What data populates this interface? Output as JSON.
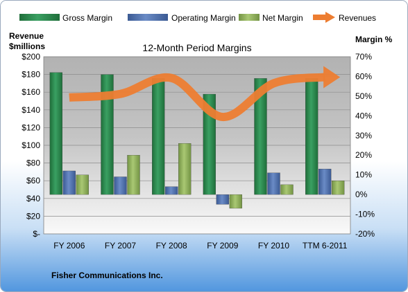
{
  "chart_data": {
    "type": "bar",
    "title": "12-Month Period Margins",
    "categories": [
      "FY 2006",
      "FY 2007",
      "FY 2008",
      "FY 2009",
      "FY 2010",
      "TTM 6-2011"
    ],
    "left_axis": {
      "label_line1": "Revenue",
      "label_line2": "$millions",
      "min": 0,
      "max": 200,
      "step": 20,
      "ticks": [
        "$-",
        "$20",
        "$40",
        "$60",
        "$80",
        "$100",
        "$120",
        "$140",
        "$160",
        "$180",
        "$200"
      ]
    },
    "right_axis": {
      "label": "Margin %",
      "min": -20,
      "max": 70,
      "step": 10,
      "ticks": [
        "-20%",
        "-10%",
        "0%",
        "10%",
        "20%",
        "30%",
        "40%",
        "50%",
        "60%",
        "70%"
      ]
    },
    "series": [
      {
        "name": "Gross Margin",
        "axis": "right",
        "kind": "bar",
        "color": "#2e8b4f",
        "values": [
          62,
          61,
          59,
          51,
          59,
          59
        ]
      },
      {
        "name": "Operating Margin",
        "axis": "right",
        "kind": "bar",
        "color": "#4f6fad",
        "values": [
          12,
          9,
          4,
          -5,
          11,
          13
        ]
      },
      {
        "name": "Net Margin",
        "axis": "right",
        "kind": "bar",
        "color": "#8fb35a",
        "values": [
          10,
          20,
          26,
          -7,
          5,
          7
        ]
      },
      {
        "name": "Revenues",
        "axis": "left",
        "kind": "line",
        "color": "#ed7d31",
        "values": [
          154,
          158,
          176,
          132,
          170,
          177
        ]
      }
    ],
    "legend_position": "top",
    "grid": true
  },
  "footer": {
    "company": "Fisher Communications Inc."
  }
}
